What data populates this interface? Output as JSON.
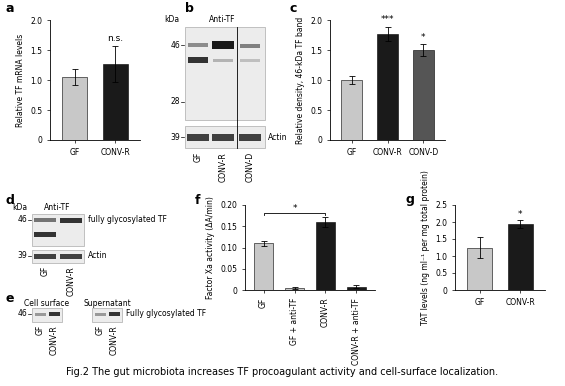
{
  "chart_data": [
    {
      "panel": "a",
      "type": "bar",
      "categories": [
        "GF",
        "CONV-R"
      ],
      "values": [
        1.05,
        1.27
      ],
      "errors": [
        0.13,
        0.3
      ],
      "colors": [
        "#c8c8c8",
        "#1a1a1a"
      ],
      "ylabel": "Relative TF mRNA levels",
      "ylim": [
        0,
        2.0
      ],
      "yticks": [
        0,
        0.5,
        {
          "value": 1,
          "label": "1.0"
        },
        1.5,
        {
          "value": 2,
          "label": "2.0"
        }
      ],
      "significance": [
        null,
        "n.s."
      ]
    },
    {
      "panel": "c",
      "type": "bar",
      "categories": [
        "GF",
        "CONV-R",
        "CONV-D"
      ],
      "values": [
        1.0,
        1.77,
        1.5
      ],
      "errors": [
        0.07,
        0.12,
        0.1
      ],
      "colors": [
        "#c8c8c8",
        "#1a1a1a",
        "#555555"
      ],
      "ylabel": "Relative density, 46-kDa TF band",
      "ylim": [
        0,
        2.0
      ],
      "yticks": [
        0,
        0.5,
        {
          "value": 1,
          "label": "1.0"
        },
        1.5,
        {
          "value": 2,
          "label": "2.0"
        }
      ],
      "significance": [
        null,
        "***",
        "*"
      ]
    },
    {
      "panel": "f",
      "type": "bar",
      "categories": [
        "GF",
        "GF + anti-TF",
        "CONV-R",
        "CONV-R + anti-TF"
      ],
      "values": [
        0.11,
        0.004,
        0.16,
        0.008
      ],
      "errors": [
        0.006,
        0.002,
        0.012,
        0.003
      ],
      "colors": [
        "#c8c8c8",
        "#c8c8c8",
        "#1a1a1a",
        "#1a1a1a"
      ],
      "ylabel": "Factor Xa activity (ΔA/min)",
      "ylim": [
        0,
        0.2
      ],
      "yticks": [
        0,
        0.05,
        {
          "value": 0.1,
          "label": "0.10"
        },
        0.15,
        {
          "value": 0.2,
          "label": "0.20"
        }
      ],
      "comparison": {
        "between": [
          "GF",
          "CONV-R"
        ],
        "label": "*"
      }
    },
    {
      "panel": "g",
      "type": "bar",
      "categories": [
        "GF",
        "CONV-R"
      ],
      "values": [
        1.25,
        1.93
      ],
      "errors": [
        0.3,
        0.12
      ],
      "colors": [
        "#c8c8c8",
        "#1a1a1a"
      ],
      "ylabel": "TAT levels (ng ml⁻¹ per mg total protein)",
      "ylim": [
        0,
        2.5
      ],
      "yticks": [
        0,
        0.5,
        {
          "value": 1,
          "label": "1.0"
        },
        1.5,
        {
          "value": 2,
          "label": "2.0"
        },
        2.5
      ],
      "significance": [
        null,
        "*"
      ]
    }
  ],
  "blots": [
    {
      "panel": "b",
      "antibody": "Anti-TF",
      "unit": "kDa",
      "markers": [
        46,
        28
      ],
      "loading_control": "Actin",
      "loading_marker": 39,
      "lanes": [
        "GF",
        "CONV-R",
        "CONV-D"
      ]
    },
    {
      "panel": "d",
      "antibody": "Anti-TF",
      "unit": "kDa",
      "markers": [
        46
      ],
      "band_label": "fully glycosylated TF",
      "loading_control": "Actin",
      "loading_marker": 39,
      "lanes": [
        "GF",
        "CONV-R"
      ]
    },
    {
      "panel": "e",
      "marker": 46,
      "band_label": "Fully glycosylated TF",
      "sections": [
        {
          "title": "Cell surface",
          "lanes": [
            "GF",
            "CONV-R"
          ]
        },
        {
          "title": "Supernatant",
          "lanes": [
            "GF",
            "CONV-R"
          ]
        }
      ]
    }
  ],
  "caption": "Fig.2 The gut microbiota increases TF procoagulant activity and cell-surface localization."
}
